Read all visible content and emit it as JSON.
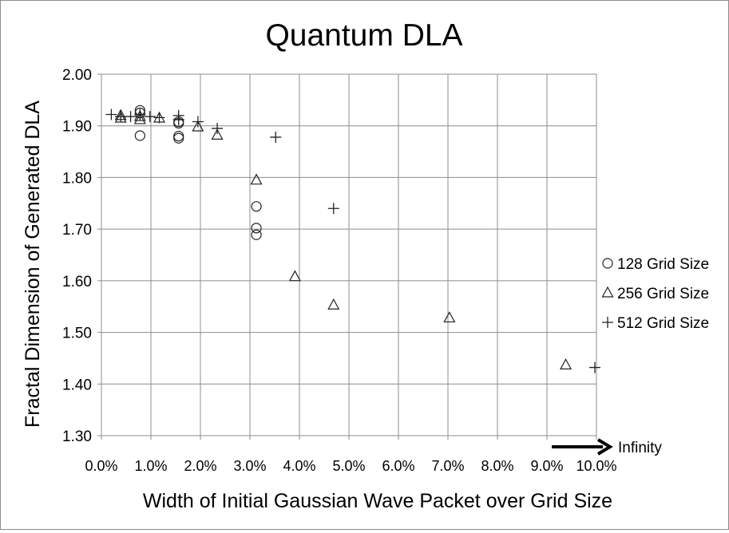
{
  "chart_data": {
    "type": "scatter",
    "title": "Quantum DLA",
    "xlabel": "Width of Initial Gaussian Wave Packet over Grid Size",
    "ylabel": "Fractal Dimension of Generated DLA",
    "xlim": [
      0.0,
      0.1
    ],
    "ylim": [
      1.3,
      2.0
    ],
    "x_ticks": [
      "0.0%",
      "1.0%",
      "2.0%",
      "3.0%",
      "4.0%",
      "5.0%",
      "6.0%",
      "7.0%",
      "8.0%",
      "9.0%",
      "10.0%"
    ],
    "y_ticks": [
      "1.30",
      "1.40",
      "1.50",
      "1.60",
      "1.70",
      "1.80",
      "1.90",
      "2.00"
    ],
    "grid": true,
    "legend_position": "right",
    "infinity_label": "Infinity",
    "series": [
      {
        "name": "128 Grid Size",
        "marker": "circle",
        "points": [
          {
            "x": 0.0078,
            "y": 1.93
          },
          {
            "x": 0.0078,
            "y": 1.925
          },
          {
            "x": 0.0078,
            "y": 1.881
          },
          {
            "x": 0.0156,
            "y": 1.908
          },
          {
            "x": 0.0156,
            "y": 1.905
          },
          {
            "x": 0.0156,
            "y": 1.88
          },
          {
            "x": 0.0156,
            "y": 1.876
          },
          {
            "x": 0.0313,
            "y": 1.744
          },
          {
            "x": 0.0313,
            "y": 1.702
          },
          {
            "x": 0.0313,
            "y": 1.689
          }
        ]
      },
      {
        "name": "256 Grid Size",
        "marker": "triangle",
        "points": [
          {
            "x": 0.0039,
            "y": 1.92
          },
          {
            "x": 0.0039,
            "y": 1.915
          },
          {
            "x": 0.0078,
            "y": 1.918
          },
          {
            "x": 0.0078,
            "y": 1.912
          },
          {
            "x": 0.0117,
            "y": 1.915
          },
          {
            "x": 0.0195,
            "y": 1.898
          },
          {
            "x": 0.0234,
            "y": 1.882
          },
          {
            "x": 0.0313,
            "y": 1.795
          },
          {
            "x": 0.0391,
            "y": 1.608
          },
          {
            "x": 0.0469,
            "y": 1.553
          },
          {
            "x": 0.0703,
            "y": 1.528
          },
          {
            "x": 0.0938,
            "y": 1.437
          }
        ]
      },
      {
        "name": "512 Grid Size",
        "marker": "plus",
        "points": [
          {
            "x": 0.002,
            "y": 1.922
          },
          {
            "x": 0.0039,
            "y": 1.918
          },
          {
            "x": 0.0059,
            "y": 1.918
          },
          {
            "x": 0.0078,
            "y": 1.922
          },
          {
            "x": 0.0098,
            "y": 1.918
          },
          {
            "x": 0.0117,
            "y": 1.916
          },
          {
            "x": 0.0156,
            "y": 1.92
          },
          {
            "x": 0.0156,
            "y": 1.912
          },
          {
            "x": 0.0195,
            "y": 1.908
          },
          {
            "x": 0.0234,
            "y": 1.895
          },
          {
            "x": 0.0352,
            "y": 1.878
          },
          {
            "x": 0.0469,
            "y": 1.74
          },
          {
            "x": "Infinity",
            "y": 1.432
          }
        ]
      }
    ]
  }
}
